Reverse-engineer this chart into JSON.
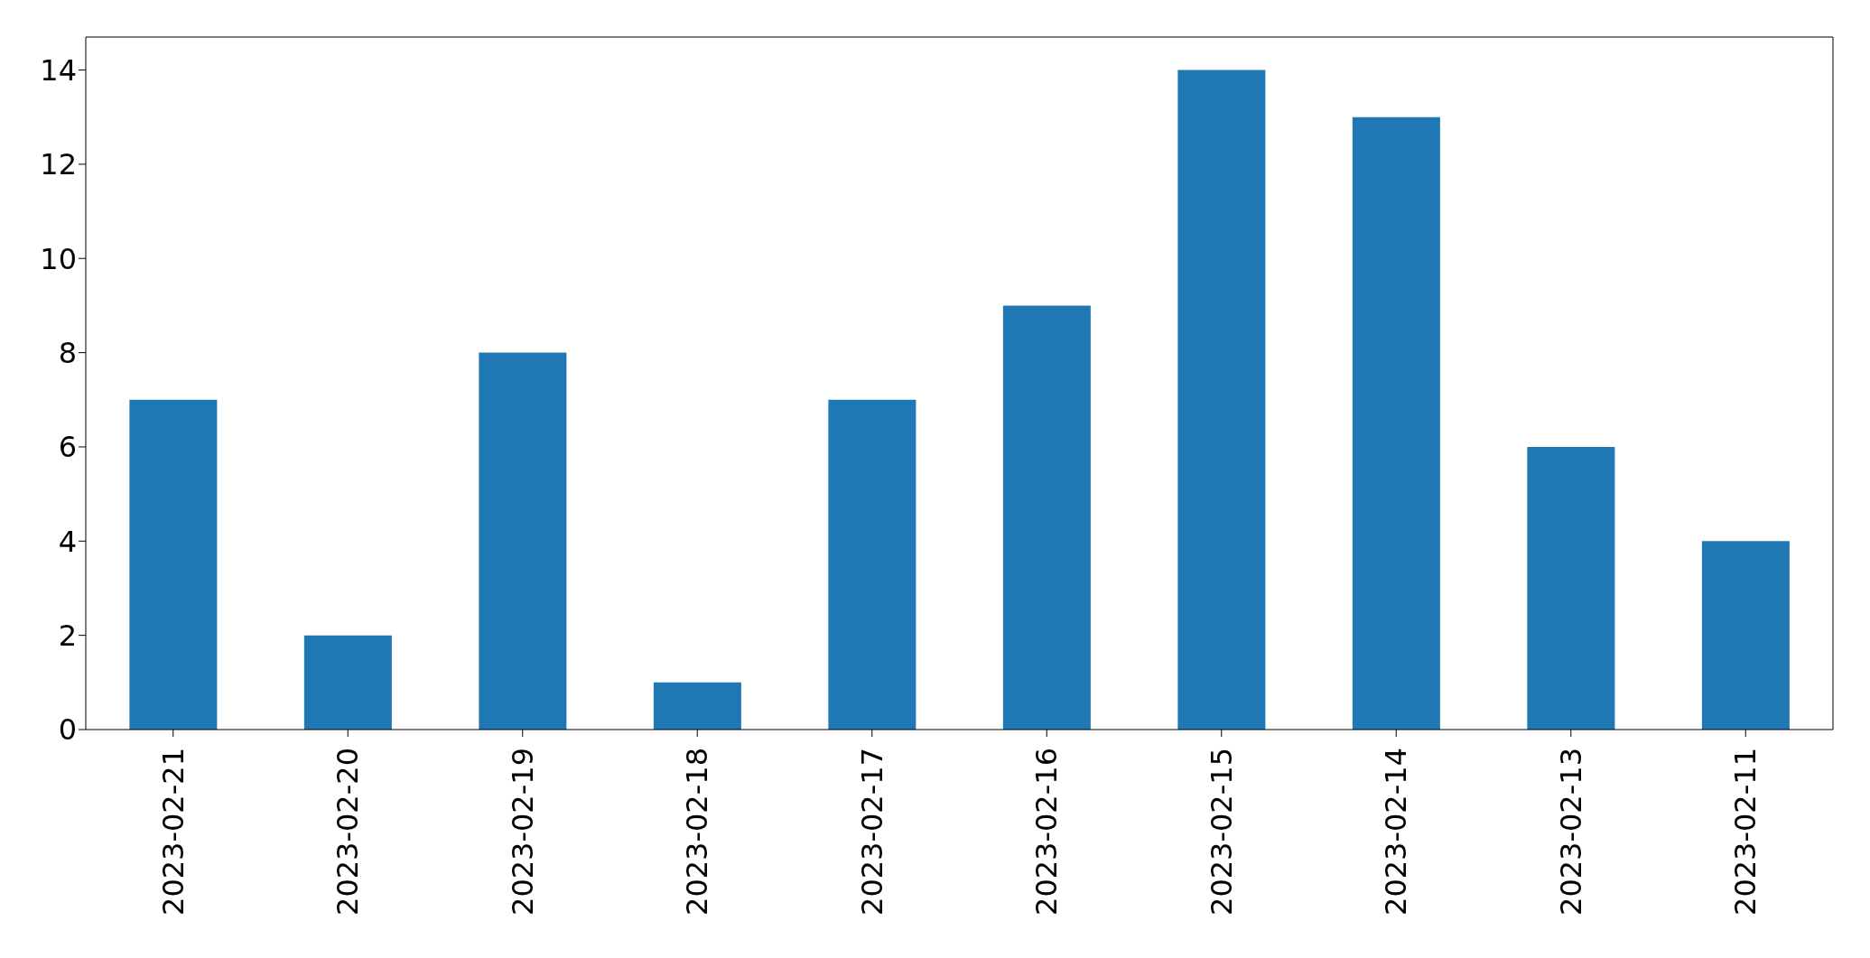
{
  "chart_data": {
    "type": "bar",
    "categories": [
      "2023-02-21",
      "2023-02-20",
      "2023-02-19",
      "2023-02-18",
      "2023-02-17",
      "2023-02-16",
      "2023-02-15",
      "2023-02-14",
      "2023-02-13",
      "2023-02-11"
    ],
    "values": [
      7,
      2,
      8,
      1,
      7,
      9,
      14,
      13,
      6,
      4
    ],
    "color": "#1f77b4",
    "ylim": [
      0,
      14.7
    ],
    "yticks": [
      0,
      2,
      4,
      6,
      8,
      10,
      12,
      14
    ]
  }
}
